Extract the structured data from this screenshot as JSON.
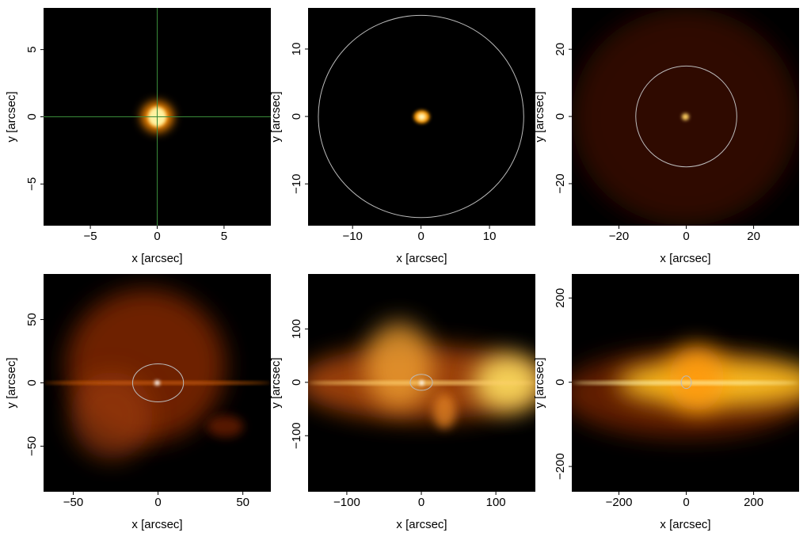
{
  "chart_data": [
    {
      "type": "image",
      "xlabel": "x [arcsec]",
      "ylabel": "y [arcsec]",
      "xlim": [
        -8.5,
        8.5
      ],
      "ylim": [
        -8.1,
        8.1
      ],
      "xticks": [
        {
          "value": -5,
          "label": "−5"
        },
        0,
        5
      ],
      "yticks": [
        {
          "value": -5,
          "label": "−5"
        },
        0,
        5
      ],
      "crosshair": true,
      "crosshair_color": "#3a8a3a"
    },
    {
      "type": "image",
      "xlabel": "x [arcsec]",
      "ylabel": "y [arcsec]",
      "xlim": [
        -16.5,
        16.7
      ],
      "ylim": [
        -16.2,
        16.1
      ],
      "xticks": [
        {
          "value": -10,
          "label": "−10"
        },
        0,
        10
      ],
      "yticks": [
        {
          "value": -10,
          "label": "−10"
        },
        0,
        10
      ],
      "circle_radius": 15,
      "circle_color": "#bbbbbb"
    },
    {
      "type": "image",
      "xlabel": "x [arcsec]",
      "ylabel": "y [arcsec]",
      "xlim": [
        -34,
        33.5
      ],
      "ylim": [
        -32.5,
        32.3
      ],
      "xticks": [
        {
          "value": -20,
          "label": "−20"
        },
        0,
        20
      ],
      "yticks": [
        {
          "value": -20,
          "label": "−20"
        },
        0,
        20
      ],
      "circle_radius": 15,
      "circle_color": "#bbbbbb"
    },
    {
      "type": "image",
      "xlabel": "x [arcsec]",
      "ylabel": "y [arcsec]",
      "xlim": [
        -67.5,
        66.5
      ],
      "ylim": [
        -86,
        86
      ],
      "xticks": [
        {
          "value": -50,
          "label": "−50"
        },
        0,
        50
      ],
      "yticks": [
        {
          "value": -50,
          "label": "−50"
        },
        0,
        50
      ],
      "circle_radius": 15,
      "circle_color": "#bbbbbb"
    },
    {
      "type": "image",
      "xlabel": "x [arcsec]",
      "ylabel": "y [arcsec]",
      "xlim": [
        -152,
        153
      ],
      "ylim": [
        -205,
        203
      ],
      "xticks": [
        {
          "value": -100,
          "label": "−100"
        },
        0,
        100
      ],
      "yticks": [
        {
          "value": -100,
          "label": "−100"
        },
        0,
        100
      ],
      "circle_radius": 15,
      "circle_color": "#bbbbbb"
    },
    {
      "type": "image",
      "xlabel": "x [arcsec]",
      "ylabel": "y [arcsec]",
      "xlim": [
        -340,
        335
      ],
      "ylim": [
        -260,
        257
      ],
      "xticks": [
        {
          "value": -200,
          "label": "−200"
        },
        0,
        200
      ],
      "yticks": [
        {
          "value": -200,
          "label": "−200"
        },
        0,
        200
      ],
      "circle_radius": 15,
      "circle_color": "#bbbbbb"
    }
  ]
}
